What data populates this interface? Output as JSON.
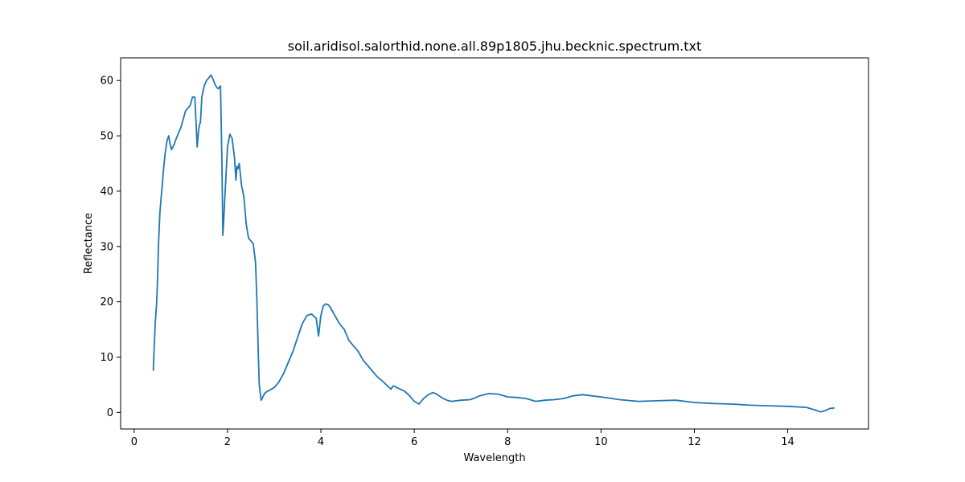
{
  "chart_data": {
    "type": "line",
    "title": "soil.aridisol.salorthid.none.all.89p1805.jhu.becknic.spectrum.txt",
    "xlabel": "Wavelength",
    "ylabel": "Reflectance",
    "xlim": [
      -0.29,
      15.73
    ],
    "ylim": [
      -3.0,
      64.1
    ],
    "x_ticks": [
      0,
      2,
      4,
      6,
      8,
      10,
      12,
      14
    ],
    "y_ticks": [
      0,
      10,
      20,
      30,
      40,
      50,
      60
    ],
    "grid": false,
    "legend": "none",
    "series": [
      {
        "color": "#1f77b4",
        "x": [
          0.41,
          0.43,
          0.45,
          0.48,
          0.5,
          0.52,
          0.55,
          0.58,
          0.6,
          0.63,
          0.66,
          0.7,
          0.74,
          0.77,
          0.8,
          0.83,
          0.86,
          0.9,
          0.95,
          1.0,
          1.05,
          1.1,
          1.15,
          1.2,
          1.25,
          1.3,
          1.35,
          1.38,
          1.4,
          1.42,
          1.45,
          1.5,
          1.55,
          1.6,
          1.65,
          1.7,
          1.75,
          1.8,
          1.85,
          1.88,
          1.9,
          1.92,
          1.95,
          2.0,
          2.05,
          2.1,
          2.15,
          2.18,
          2.2,
          2.22,
          2.25,
          2.3,
          2.35,
          2.4,
          2.45,
          2.5,
          2.55,
          2.6,
          2.63,
          2.66,
          2.68,
          2.7,
          2.72,
          2.74,
          2.77,
          2.8,
          2.85,
          2.9,
          3.0,
          3.1,
          3.2,
          3.3,
          3.4,
          3.5,
          3.6,
          3.7,
          3.8,
          3.9,
          3.95,
          4.0,
          4.05,
          4.1,
          4.15,
          4.2,
          4.3,
          4.4,
          4.5,
          4.6,
          4.7,
          4.8,
          4.9,
          5.0,
          5.1,
          5.2,
          5.3,
          5.4,
          5.5,
          5.55,
          5.6,
          5.7,
          5.8,
          5.9,
          6.0,
          6.1,
          6.2,
          6.3,
          6.4,
          6.5,
          6.6,
          6.7,
          6.8,
          7.0,
          7.2,
          7.3,
          7.4,
          7.6,
          7.8,
          8.0,
          8.2,
          8.4,
          8.6,
          8.8,
          9.0,
          9.2,
          9.4,
          9.6,
          9.8,
          10.0,
          10.4,
          10.8,
          11.2,
          11.6,
          12.0,
          12.4,
          12.8,
          13.2,
          13.6,
          14.0,
          14.4,
          14.6,
          14.7,
          14.8,
          14.9,
          15.0
        ],
        "values": [
          7.5,
          12.0,
          16.0,
          19.5,
          24.0,
          30.0,
          36.0,
          39.0,
          41.0,
          44.0,
          46.5,
          49.0,
          50.0,
          48.5,
          47.5,
          48.0,
          48.5,
          49.5,
          50.5,
          51.5,
          53.0,
          54.5,
          55.0,
          55.5,
          57.0,
          57.0,
          48.0,
          51.0,
          52.0,
          52.5,
          57.0,
          59.0,
          60.0,
          60.5,
          61.0,
          60.0,
          59.0,
          58.5,
          59.0,
          45.0,
          32.0,
          35.0,
          40.0,
          48.0,
          50.3,
          49.5,
          46.0,
          42.0,
          44.5,
          44.0,
          45.0,
          41.0,
          39.0,
          34.0,
          31.5,
          31.0,
          30.5,
          27.0,
          20.0,
          10.0,
          5.0,
          3.5,
          2.2,
          2.5,
          3.0,
          3.5,
          3.8,
          4.0,
          4.5,
          5.5,
          7.0,
          9.0,
          11.0,
          13.5,
          16.0,
          17.5,
          17.8,
          17.0,
          13.8,
          17.5,
          19.2,
          19.6,
          19.5,
          19.0,
          17.5,
          16.0,
          15.0,
          13.0,
          12.0,
          11.0,
          9.5,
          8.5,
          7.5,
          6.5,
          5.8,
          5.0,
          4.2,
          4.8,
          4.6,
          4.2,
          3.8,
          3.0,
          2.0,
          1.5,
          2.5,
          3.2,
          3.6,
          3.2,
          2.6,
          2.2,
          2.0,
          2.2,
          2.3,
          2.6,
          3.0,
          3.4,
          3.3,
          2.8,
          2.7,
          2.5,
          2.0,
          2.2,
          2.3,
          2.5,
          3.0,
          3.2,
          3.0,
          2.8,
          2.3,
          2.0,
          2.1,
          2.2,
          1.8,
          1.6,
          1.5,
          1.3,
          1.2,
          1.1,
          0.9,
          0.4,
          0.1,
          0.3,
          0.7,
          0.8
        ]
      }
    ]
  }
}
